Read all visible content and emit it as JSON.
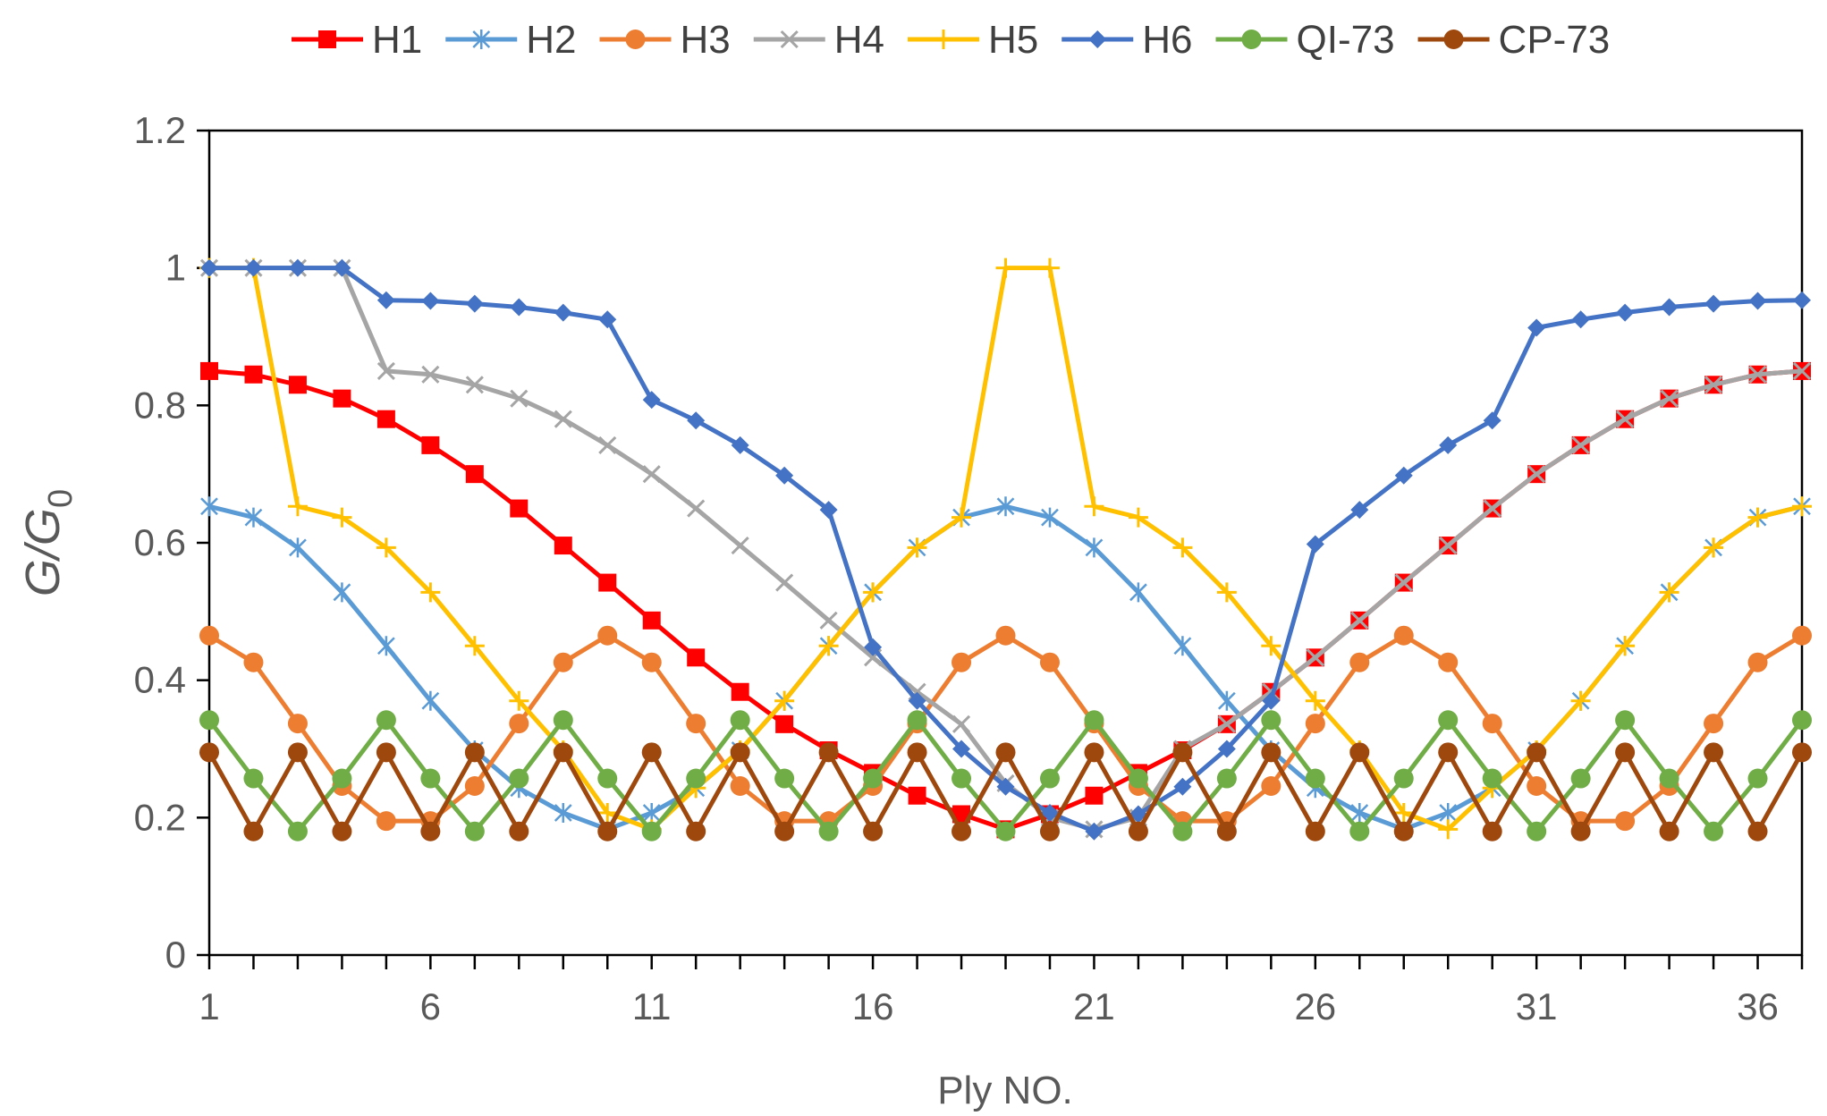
{
  "chart_data": {
    "type": "line",
    "title": "",
    "xlabel": "Ply NO.",
    "ylabel_main": "G",
    "ylabel_div": "/",
    "ylabel_denom": "G",
    "ylabel_sub": "0",
    "xlim": [
      1,
      37
    ],
    "ylim": [
      0,
      1.2
    ],
    "x_ticks": [
      1,
      6,
      11,
      16,
      21,
      26,
      31,
      36
    ],
    "y_ticks": [
      0,
      0.2,
      0.4,
      0.6,
      0.8,
      1,
      1.2
    ],
    "y_tick_labels": [
      "0",
      "0.2",
      "0.4",
      "0.6",
      "0.8",
      "1",
      "1.2"
    ],
    "legend_position": "top",
    "x": [
      1,
      2,
      3,
      4,
      5,
      6,
      7,
      8,
      9,
      10,
      11,
      12,
      13,
      14,
      15,
      16,
      17,
      18,
      19,
      20,
      21,
      22,
      23,
      24,
      25,
      26,
      27,
      28,
      29,
      30,
      31,
      32,
      33,
      34,
      35,
      36,
      37
    ],
    "series": [
      {
        "name": "H1",
        "color": "#ff0000",
        "marker": "square",
        "values": [
          0.85,
          0.845,
          0.83,
          0.81,
          0.78,
          0.742,
          0.7,
          0.65,
          0.596,
          0.542,
          0.487,
          0.433,
          0.383,
          0.336,
          0.298,
          0.265,
          0.232,
          0.205,
          0.183,
          0.205,
          0.232,
          0.265,
          0.298,
          0.336,
          0.383,
          0.433,
          0.487,
          0.542,
          0.596,
          0.65,
          0.7,
          0.742,
          0.78,
          0.81,
          0.83,
          0.845,
          0.85
        ]
      },
      {
        "name": "H2",
        "color": "#5b9bd5",
        "marker": "asterisk",
        "values": [
          0.653,
          0.637,
          0.593,
          0.528,
          0.45,
          0.37,
          0.298,
          0.243,
          0.207,
          0.183,
          0.207,
          0.243,
          0.298,
          0.37,
          0.45,
          0.528,
          0.593,
          0.637,
          0.653,
          0.637,
          0.593,
          0.528,
          0.45,
          0.37,
          0.298,
          0.243,
          0.207,
          0.183,
          0.207,
          0.243,
          0.298,
          0.37,
          0.45,
          0.528,
          0.593,
          0.637,
          0.653
        ]
      },
      {
        "name": "H3",
        "color": "#ed7d31",
        "marker": "circle",
        "values": [
          0.465,
          0.426,
          0.337,
          0.246,
          0.195,
          0.195,
          0.246,
          0.337,
          0.426,
          0.465,
          0.426,
          0.337,
          0.246,
          0.195,
          0.195,
          0.246,
          0.337,
          0.426,
          0.465,
          0.426,
          0.337,
          0.246,
          0.195,
          0.195,
          0.246,
          0.337,
          0.426,
          0.465,
          0.426,
          0.337,
          0.246,
          0.195,
          0.195,
          0.246,
          0.337,
          0.426,
          0.465
        ]
      },
      {
        "name": "H4",
        "color": "#a5a5a5",
        "marker": "x",
        "values": [
          1,
          1,
          1,
          1,
          0.85,
          0.845,
          0.83,
          0.81,
          0.78,
          0.742,
          0.7,
          0.65,
          0.596,
          0.542,
          0.487,
          0.433,
          0.383,
          0.336,
          0.25,
          0.2,
          0.183,
          0.2,
          0.3,
          0.336,
          0.383,
          0.433,
          0.487,
          0.542,
          0.596,
          0.65,
          0.7,
          0.742,
          0.78,
          0.81,
          0.83,
          0.845,
          0.85
        ]
      },
      {
        "name": "H5",
        "color": "#ffc000",
        "marker": "plus",
        "values": [
          1,
          1,
          0.653,
          0.637,
          0.593,
          0.528,
          0.45,
          0.37,
          0.298,
          0.207,
          0.183,
          0.243,
          0.298,
          0.37,
          0.45,
          0.528,
          0.593,
          0.637,
          1,
          1,
          0.653,
          0.637,
          0.593,
          0.528,
          0.45,
          0.37,
          0.298,
          0.207,
          0.183,
          0.243,
          0.298,
          0.37,
          0.45,
          0.528,
          0.593,
          0.637,
          0.653
        ]
      },
      {
        "name": "H6",
        "color": "#4472c4",
        "marker": "diamond",
        "values": [
          1,
          1,
          1,
          1,
          0.953,
          0.952,
          0.948,
          0.943,
          0.935,
          0.925,
          0.808,
          0.778,
          0.742,
          0.698,
          0.648,
          0.448,
          0.37,
          0.3,
          0.245,
          0.207,
          0.18,
          0.205,
          0.245,
          0.3,
          0.37,
          0.598,
          0.648,
          0.698,
          0.742,
          0.778,
          0.913,
          0.925,
          0.935,
          0.943,
          0.948,
          0.952,
          0.953
        ]
      },
      {
        "name": "QI-73",
        "color": "#70ad47",
        "marker": "circle",
        "values": [
          0.342,
          0.257,
          0.18,
          0.257,
          0.342,
          0.257,
          0.18,
          0.257,
          0.342,
          0.257,
          0.18,
          0.257,
          0.342,
          0.257,
          0.18,
          0.257,
          0.342,
          0.257,
          0.18,
          0.257,
          0.342,
          0.257,
          0.18,
          0.257,
          0.342,
          0.257,
          0.18,
          0.257,
          0.342,
          0.257,
          0.18,
          0.257,
          0.342,
          0.257,
          0.18,
          0.257,
          0.342
        ]
      },
      {
        "name": "CP-73",
        "color": "#9e480e",
        "marker": "circle",
        "values": [
          0.295,
          0.18,
          0.295,
          0.18,
          0.295,
          0.18,
          0.295,
          0.18,
          0.295,
          0.18,
          0.295,
          0.18,
          0.295,
          0.18,
          0.295,
          0.18,
          0.295,
          0.18,
          0.295,
          0.18,
          0.295,
          0.18,
          0.295,
          0.18,
          0.295,
          0.18,
          0.295,
          0.18,
          0.295,
          0.18,
          0.295,
          0.18,
          0.295,
          0.18,
          0.295,
          0.18,
          0.295
        ]
      }
    ]
  }
}
